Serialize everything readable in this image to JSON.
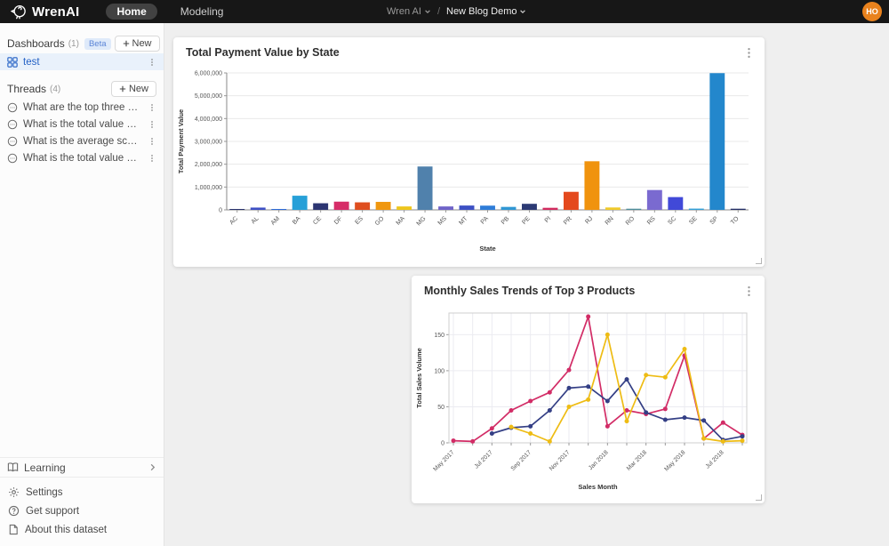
{
  "navbar": {
    "brand": "WrenAI",
    "tabs": [
      {
        "label": "Home",
        "active": true
      },
      {
        "label": "Modeling",
        "active": false
      }
    ],
    "project": "Wren AI",
    "separator": "/",
    "dataset": "New Blog Demo",
    "avatar_initials": "HO",
    "avatar_color": "#e9821d"
  },
  "sidebar": {
    "dashboards": {
      "title": "Dashboards",
      "count": "(1)",
      "badge": "Beta",
      "new_label": "New",
      "items": [
        {
          "label": "test",
          "selected": true
        }
      ]
    },
    "threads": {
      "title": "Threads",
      "count": "(4)",
      "new_label": "New",
      "items": [
        "What are the top three most p...",
        "What is the total value of paym...",
        "What is the average score of r...",
        "What is the total value of paym..."
      ]
    },
    "footer": {
      "learning": "Learning",
      "settings": "Settings",
      "support": "Get support",
      "about": "About this dataset"
    }
  },
  "chart_data": [
    {
      "type": "bar",
      "title": "Total Payment Value by State",
      "xlabel": "State",
      "ylabel": "Total Payment Value",
      "ylim": [
        0,
        6000000
      ],
      "ytick_step": 1000000,
      "grid": true,
      "categories": [
        "AC",
        "AL",
        "AM",
        "BA",
        "CE",
        "DF",
        "ES",
        "GO",
        "MA",
        "MG",
        "MS",
        "MT",
        "PA",
        "PB",
        "PE",
        "PI",
        "PR",
        "RJ",
        "RN",
        "RO",
        "RS",
        "SC",
        "SE",
        "SP",
        "TO"
      ],
      "values": [
        25000,
        100000,
        30000,
        620000,
        290000,
        360000,
        330000,
        350000,
        150000,
        1900000,
        150000,
        190000,
        185000,
        130000,
        265000,
        90000,
        790000,
        2130000,
        105000,
        50000,
        870000,
        560000,
        55000,
        5990000,
        50000
      ],
      "colors": [
        "#2a336e",
        "#3d4fc4",
        "#2d6bd8",
        "#27a0d8",
        "#2c3572",
        "#d62d68",
        "#df4e1f",
        "#f0970f",
        "#eec61c",
        "#5081ac",
        "#6f63c8",
        "#3c50c4",
        "#2e7cd8",
        "#2f97d4",
        "#2c3a74",
        "#d22a5e",
        "#e4491d",
        "#f0930e",
        "#f0c92a",
        "#4e8e9c",
        "#7a6ad0",
        "#4149d8",
        "#32a0d9",
        "#2387cc",
        "#232e66"
      ]
    },
    {
      "type": "line",
      "title": "Monthly Sales Trends of Top 3 Products",
      "xlabel": "Sales Month",
      "ylabel": "Total Sales Volume",
      "ylim": [
        0,
        180
      ],
      "yticks": [
        0,
        50,
        100,
        150
      ],
      "grid": true,
      "x": [
        "May 2017",
        "Jun 2017",
        "Jul 2017",
        "Aug 2017",
        "Sep 2017",
        "Oct 2017",
        "Nov 2017",
        "Dec 2017",
        "Jan 2018",
        "Feb 2018",
        "Mar 2018",
        "Apr 2018",
        "May 2018",
        "Jun 2018",
        "Jul 2018",
        "Aug 2018"
      ],
      "xtick_every": 2,
      "series": [
        {
          "name": "series-crimson",
          "color": "#d22c66",
          "values": [
            3,
            2,
            20,
            45,
            58,
            70,
            101,
            175,
            23,
            45,
            40,
            47,
            121,
            6,
            28,
            11
          ]
        },
        {
          "name": "series-navy",
          "color": "#343f85",
          "values": [
            null,
            null,
            13,
            21,
            23,
            45,
            76,
            78,
            58,
            88,
            42,
            32,
            35,
            31,
            4,
            9
          ]
        },
        {
          "name": "series-gold",
          "color": "#eebc14",
          "values": [
            null,
            null,
            null,
            22,
            13,
            2,
            50,
            60,
            150,
            30,
            94,
            91,
            130,
            6,
            2,
            3
          ]
        }
      ]
    }
  ]
}
